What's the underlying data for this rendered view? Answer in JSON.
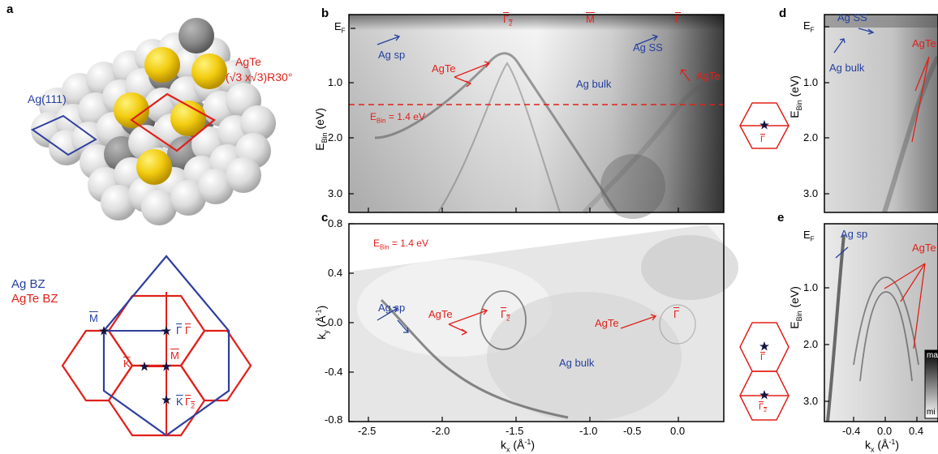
{
  "panels": {
    "a": "a",
    "b": "b",
    "c": "c",
    "d": "d",
    "e": "e"
  },
  "a": {
    "substrate": "Ag(111)",
    "overlayer": "AgTe",
    "overlayer_cell": "(√3 x√3)R30°",
    "bz_ag": "Ag BZ",
    "bz_agte": "AgTe BZ",
    "pts": {
      "m_blue": "M",
      "gamma_blue": "Γ",
      "gamma_red": "Γ",
      "k_red": "K",
      "m_red": "M",
      "k_blue": "K",
      "gamma2_red": "Γ",
      "sub2": "2"
    }
  },
  "b": {
    "ef": "E",
    "ef_sub": "F",
    "ylabel": "E",
    "ylabel_sub": "Bin",
    "ylabel_unit": " (eV)",
    "yticks": [
      "1.0",
      "2.0",
      "3.0"
    ],
    "top_labels": {
      "g2": "Γ",
      "sub2": "2",
      "m": "M",
      "g": "Γ"
    },
    "ann": {
      "ag_sp": "Ag sp",
      "agte1": "AgTe",
      "ag_bulk": "Ag bulk",
      "ag_ss": "Ag SS",
      "agte2": "AgTe"
    },
    "cut_label": "E",
    "cut_sub": "Bin",
    "cut_value": " = 1.4 eV",
    "colors": {
      "blue": "#2540a0",
      "red": "#e0201a"
    }
  },
  "c": {
    "ylabel": "k",
    "ylabel_sub": "y",
    "ylabel_unit": " (Å",
    "yticks": [
      "0.8",
      "0.4",
      "0.0",
      "-0.4",
      "-0.8"
    ],
    "xticks": [
      "-2.5",
      "-2.0",
      "-1.5",
      "-1.0",
      "-0.5",
      "0.0"
    ],
    "xlabel": "k",
    "xlabel_sub": "x",
    "xlabel_unit": " (Å",
    "exp": "-1",
    "energy_label": "E",
    "energy_sub": "Bin",
    "energy_value": " = 1.4 eV",
    "ann": {
      "ag_sp": "Ag sp",
      "agte1": "AgTe",
      "g2": "Γ",
      "sub2": "2",
      "agte2": "AgTe",
      "g": "Γ",
      "ag_bulk": "Ag bulk"
    }
  },
  "bz_insets": {
    "g": "Γ",
    "g2": "Γ",
    "sub2": "2"
  },
  "d": {
    "ef": "E",
    "ef_sub": "F",
    "ylabel": "E",
    "ylabel_sub": "Bin",
    "ylabel_unit": " (eV)",
    "yticks": [
      "1.0",
      "2.0",
      "3.0"
    ],
    "ann": {
      "ag_ss": "Ag SS",
      "ag_bulk": "Ag bulk",
      "agte": "AgTe"
    }
  },
  "e": {
    "ef": "E",
    "ef_sub": "F",
    "ylabel": "E",
    "ylabel_sub": "Bin",
    "ylabel_unit": " (eV)",
    "yticks": [
      "1.0",
      "2.0",
      "3.0"
    ],
    "xticks": [
      "-0.4",
      "0.0",
      "0.4"
    ],
    "xlabel": "k",
    "xlabel_sub": "x",
    "xlabel_unit": " (Å",
    "exp": "-1",
    "ann": {
      "ag_sp": "Ag sp",
      "agte": "AgTe"
    },
    "colorbar": {
      "max": "ma",
      "min": "mi"
    }
  }
}
